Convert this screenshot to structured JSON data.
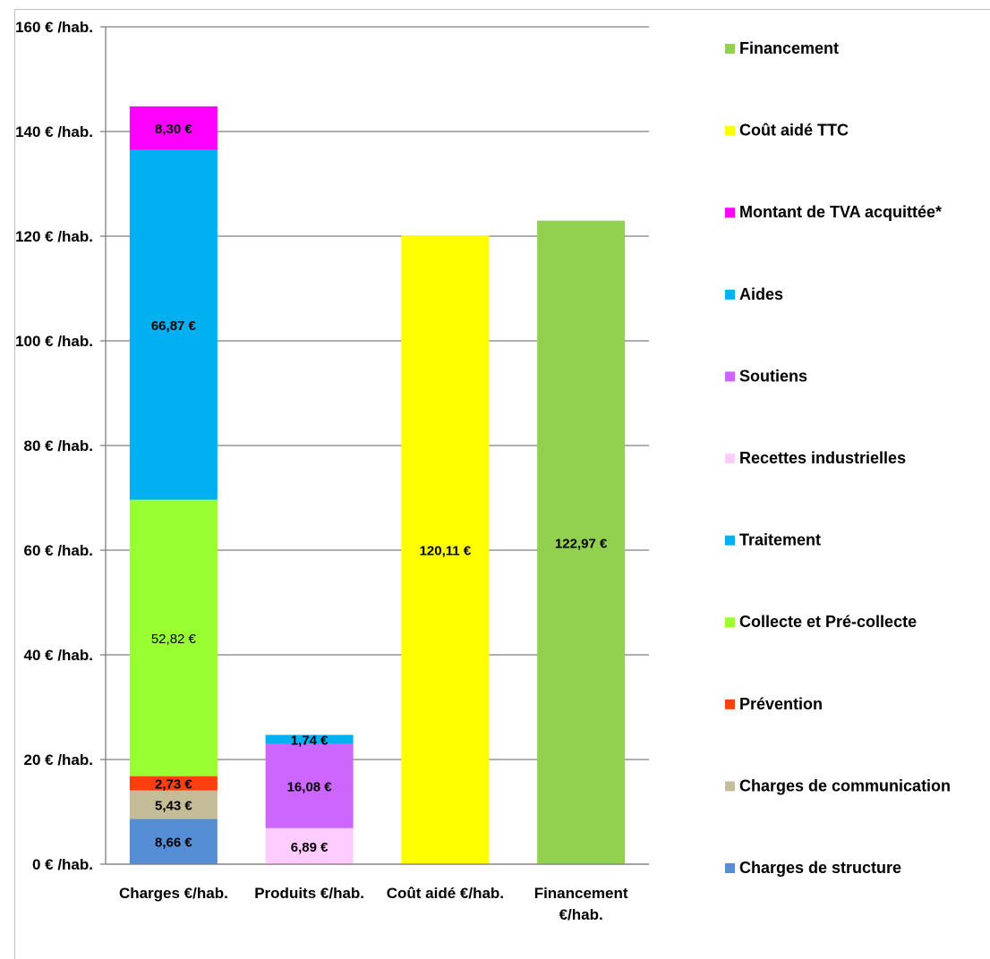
{
  "chart_data": {
    "type": "bar",
    "stacked": true,
    "ylim": [
      0,
      160
    ],
    "yticks": [
      {
        "value": 0,
        "label": "0 € /hab."
      },
      {
        "value": 20,
        "label": "20 € /hab."
      },
      {
        "value": 40,
        "label": "40 € /hab."
      },
      {
        "value": 60,
        "label": "60 € /hab."
      },
      {
        "value": 80,
        "label": "80 € /hab."
      },
      {
        "value": 100,
        "label": "100 € /hab."
      },
      {
        "value": 120,
        "label": "120 € /hab."
      },
      {
        "value": 140,
        "label": "140 € /hab."
      },
      {
        "value": 160,
        "label": "160 € /hab."
      }
    ],
    "grid": true,
    "legend_position": "right",
    "categories": [
      {
        "lines": [
          "Charges €/hab."
        ]
      },
      {
        "lines": [
          "Produits €/hab."
        ]
      },
      {
        "lines": [
          "Coût aidé €/hab."
        ]
      },
      {
        "lines": [
          "Financement",
          "€/hab."
        ]
      }
    ],
    "series": [
      {
        "name": "Charges de structure",
        "color": "#558ED5",
        "values": [
          8.66,
          null,
          null,
          null
        ],
        "labels": [
          "8,66 €",
          null,
          null,
          null
        ]
      },
      {
        "name": "Charges de communication",
        "color": "#C4BD97",
        "values": [
          5.43,
          null,
          null,
          null
        ],
        "labels": [
          "5,43 €",
          null,
          null,
          null
        ]
      },
      {
        "name": "Prévention",
        "color": "#FF3F0F",
        "values": [
          2.73,
          null,
          null,
          null
        ],
        "labels": [
          "2,73 €",
          null,
          null,
          null
        ]
      },
      {
        "name": "Collecte et Pré-collecte",
        "color": "#99FF33",
        "values": [
          52.82,
          null,
          null,
          null
        ],
        "labels": [
          "52,82 €",
          null,
          null,
          null
        ]
      },
      {
        "name": "Traitement",
        "color": "#00B0F0",
        "values": [
          66.87,
          null,
          null,
          null
        ],
        "labels": [
          "66,87 €",
          null,
          null,
          null
        ]
      },
      {
        "name": "Recettes industrielles",
        "color": "#FFCCFF",
        "values": [
          null,
          6.89,
          null,
          null
        ],
        "labels": [
          null,
          "6,89 €",
          null,
          null
        ]
      },
      {
        "name": "Soutiens",
        "color": "#CC66FF",
        "values": [
          null,
          16.08,
          null,
          null
        ],
        "labels": [
          null,
          "16,08 €",
          null,
          null
        ]
      },
      {
        "name": "Aides",
        "color": "#00B0F0",
        "values": [
          null,
          1.74,
          null,
          null
        ],
        "labels": [
          null,
          "1,74 €",
          null,
          null
        ]
      },
      {
        "name": "Montant de TVA acquittée*",
        "color": "#FF00FF",
        "values": [
          8.3,
          null,
          null,
          null
        ],
        "labels": [
          "8,30 €",
          null,
          null,
          null
        ]
      },
      {
        "name": "Coût aidé TTC",
        "color": "#FFFF00",
        "values": [
          null,
          null,
          120.11,
          null
        ],
        "labels": [
          null,
          null,
          "120,11 €",
          null
        ]
      },
      {
        "name": "Financement",
        "color": "#92D050",
        "values": [
          null,
          null,
          null,
          122.97
        ],
        "labels": [
          null,
          null,
          null,
          "122,97 €"
        ]
      }
    ],
    "legend": [
      {
        "name": "Financement",
        "color": "#92D050"
      },
      {
        "name": "Coût aidé TTC",
        "color": "#FFFF00"
      },
      {
        "name": "Montant de TVA acquittée*",
        "color": "#FF00FF"
      },
      {
        "name": "Aides",
        "color": "#00B0F0"
      },
      {
        "name": "Soutiens",
        "color": "#CC66FF"
      },
      {
        "name": "Recettes industrielles",
        "color": "#FFCCFF"
      },
      {
        "name": "Traitement",
        "color": "#00B0F0"
      },
      {
        "name": "Collecte et Pré-collecte",
        "color": "#99FF33"
      },
      {
        "name": "Prévention",
        "color": "#FF3F0F"
      },
      {
        "name": "Charges de communication",
        "color": "#C4BD97"
      },
      {
        "name": "Charges de structure",
        "color": "#558ED5"
      }
    ]
  }
}
